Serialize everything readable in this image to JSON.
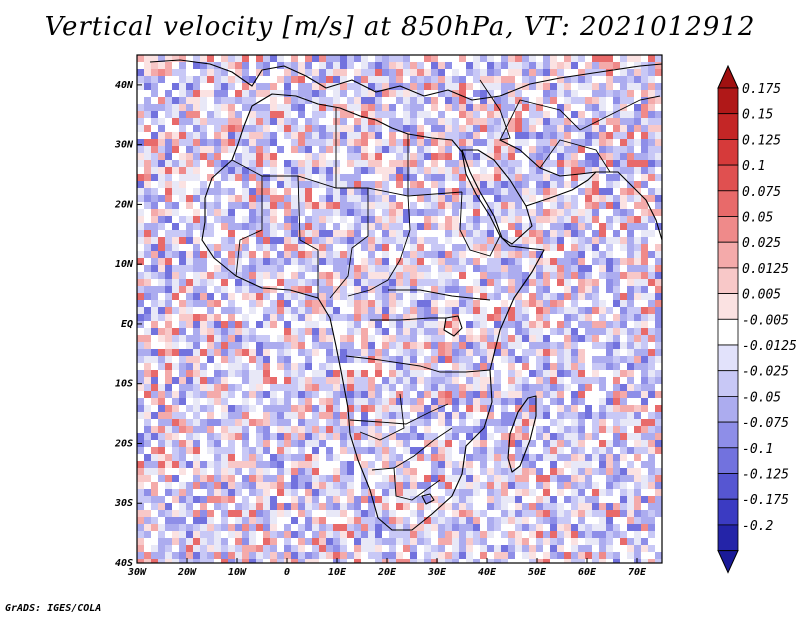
{
  "title": "Vertical velocity [m/s] at 850hPa, VT: 2021012912",
  "footer": "GrADS: IGES/COLA",
  "map": {
    "lon_range": [
      -30,
      75
    ],
    "lat_range": [
      -40,
      45
    ],
    "lat_ticks": [
      {
        "value": 40,
        "label": "40N"
      },
      {
        "value": 30,
        "label": "30N"
      },
      {
        "value": 20,
        "label": "20N"
      },
      {
        "value": 10,
        "label": "10N"
      },
      {
        "value": 0,
        "label": "EQ"
      },
      {
        "value": -10,
        "label": "10S"
      },
      {
        "value": -20,
        "label": "20S"
      },
      {
        "value": -30,
        "label": "30S"
      },
      {
        "value": -40,
        "label": "40S"
      }
    ],
    "lon_ticks": [
      {
        "value": -30,
        "label": "30W"
      },
      {
        "value": -20,
        "label": "20W"
      },
      {
        "value": -10,
        "label": "10W"
      },
      {
        "value": 0,
        "label": "0"
      },
      {
        "value": 10,
        "label": "10E"
      },
      {
        "value": 20,
        "label": "20E"
      },
      {
        "value": 30,
        "label": "30E"
      },
      {
        "value": 40,
        "label": "40E"
      },
      {
        "value": 50,
        "label": "50E"
      },
      {
        "value": 60,
        "label": "60E"
      },
      {
        "value": 70,
        "label": "70E"
      }
    ]
  },
  "colorbar": {
    "levels": [
      {
        "label": "0.175",
        "color": "#b01818"
      },
      {
        "label": "0.15",
        "color": "#c42626"
      },
      {
        "label": "0.125",
        "color": "#d63a3a"
      },
      {
        "label": "0.1",
        "color": "#e05050"
      },
      {
        "label": "0.075",
        "color": "#e86a6a"
      },
      {
        "label": "0.05",
        "color": "#ef8a8a"
      },
      {
        "label": "0.025",
        "color": "#f4aaaa"
      },
      {
        "label": "0.0125",
        "color": "#f8c8c8"
      },
      {
        "label": "0.005",
        "color": "#fbe2e2"
      },
      {
        "label": "-0.005",
        "color": "#ffffff"
      },
      {
        "label": "-0.0125",
        "color": "#e2e2fb"
      },
      {
        "label": "-0.025",
        "color": "#c8c8f6"
      },
      {
        "label": "-0.05",
        "color": "#acacef"
      },
      {
        "label": "-0.075",
        "color": "#8e8ee8"
      },
      {
        "label": "-0.1",
        "color": "#7272de"
      },
      {
        "label": "-0.125",
        "color": "#5656d2"
      },
      {
        "label": "-0.175",
        "color": "#3b3bc2"
      },
      {
        "label": "-0.2",
        "color": "#2424a8"
      }
    ],
    "top_color": "#a01010",
    "bottom_color": "#1a1a98"
  }
}
